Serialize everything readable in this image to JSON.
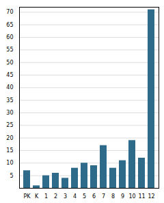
{
  "chart_data": {
    "type": "bar",
    "categories": [
      "PK",
      "K",
      "1",
      "2",
      "3",
      "4",
      "5",
      "6",
      "7",
      "8",
      "9",
      "10",
      "11",
      "12"
    ],
    "values": [
      7,
      1,
      5,
      6,
      4,
      8,
      10,
      9,
      17,
      8,
      11,
      19,
      12,
      71
    ],
    "color": "#2e6b8a",
    "ylim": [
      0,
      72
    ],
    "yticks": [
      5,
      10,
      15,
      20,
      25,
      30,
      35,
      40,
      45,
      50,
      55,
      60,
      65,
      70
    ],
    "grid": true
  }
}
